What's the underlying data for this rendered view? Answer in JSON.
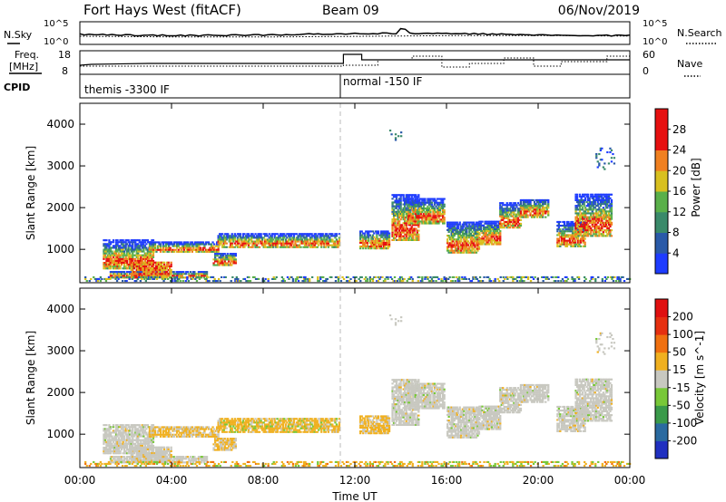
{
  "header": {
    "title": "Fort Hays West (fitACF)",
    "beam": "Beam 09",
    "date": "06/Nov/2019"
  },
  "noise_panel": {
    "left_label": "N.Sky",
    "right_label": "N.Search",
    "left_ticks": [
      "10^5",
      "10^0"
    ],
    "right_ticks": [
      "10^5",
      "10^0"
    ]
  },
  "freq_panel": {
    "left_label_line1": "Freq.",
    "left_label_line2": "[MHz]",
    "right_label": "Nave",
    "left_ticks": [
      "18",
      "8"
    ],
    "right_ticks": [
      "60",
      "0"
    ]
  },
  "cpid_panel": {
    "label": "CPID",
    "modes": [
      "themis -3300 IF",
      "normal -150 IF"
    ]
  },
  "chart_data": [
    {
      "type": "heatmap",
      "name": "power",
      "ylabel": "Slant Range [km]",
      "xlabel": "",
      "xlim": [
        0,
        24
      ],
      "ylim": [
        200,
        4500
      ],
      "yticks": [
        "1000",
        "2000",
        "3000",
        "4000"
      ],
      "colorbar_label": "Power [dB]",
      "colorbar_ticks": [
        "4",
        "8",
        "12",
        "16",
        "20",
        "24",
        "28"
      ],
      "colorbar_colors": [
        "#1e3cff",
        "#2a5aa8",
        "#3a8a6a",
        "#5ab04a",
        "#d8c020",
        "#f08020",
        "#e61010"
      ]
    },
    {
      "type": "heatmap",
      "name": "velocity",
      "ylabel": "Slant Range [km]",
      "xlabel": "Time UT",
      "xlim": [
        0,
        24
      ],
      "ylim": [
        200,
        4500
      ],
      "yticks": [
        "1000",
        "2000",
        "3000",
        "4000"
      ],
      "xticks": [
        "00:00",
        "04:00",
        "08:00",
        "12:00",
        "16:00",
        "20:00",
        "00:00"
      ],
      "colorbar_label": "Velocity [m s^-1]",
      "colorbar_ticks": [
        "200",
        "100",
        "50",
        "15",
        "-15",
        "-50",
        "-100",
        "-200"
      ],
      "colorbar_colors": [
        "#2030c0",
        "#2a6aa0",
        "#3a9a4a",
        "#78c838",
        "#c8c8c0",
        "#f0b020",
        "#f07010",
        "#e63010",
        "#e01010"
      ]
    }
  ]
}
